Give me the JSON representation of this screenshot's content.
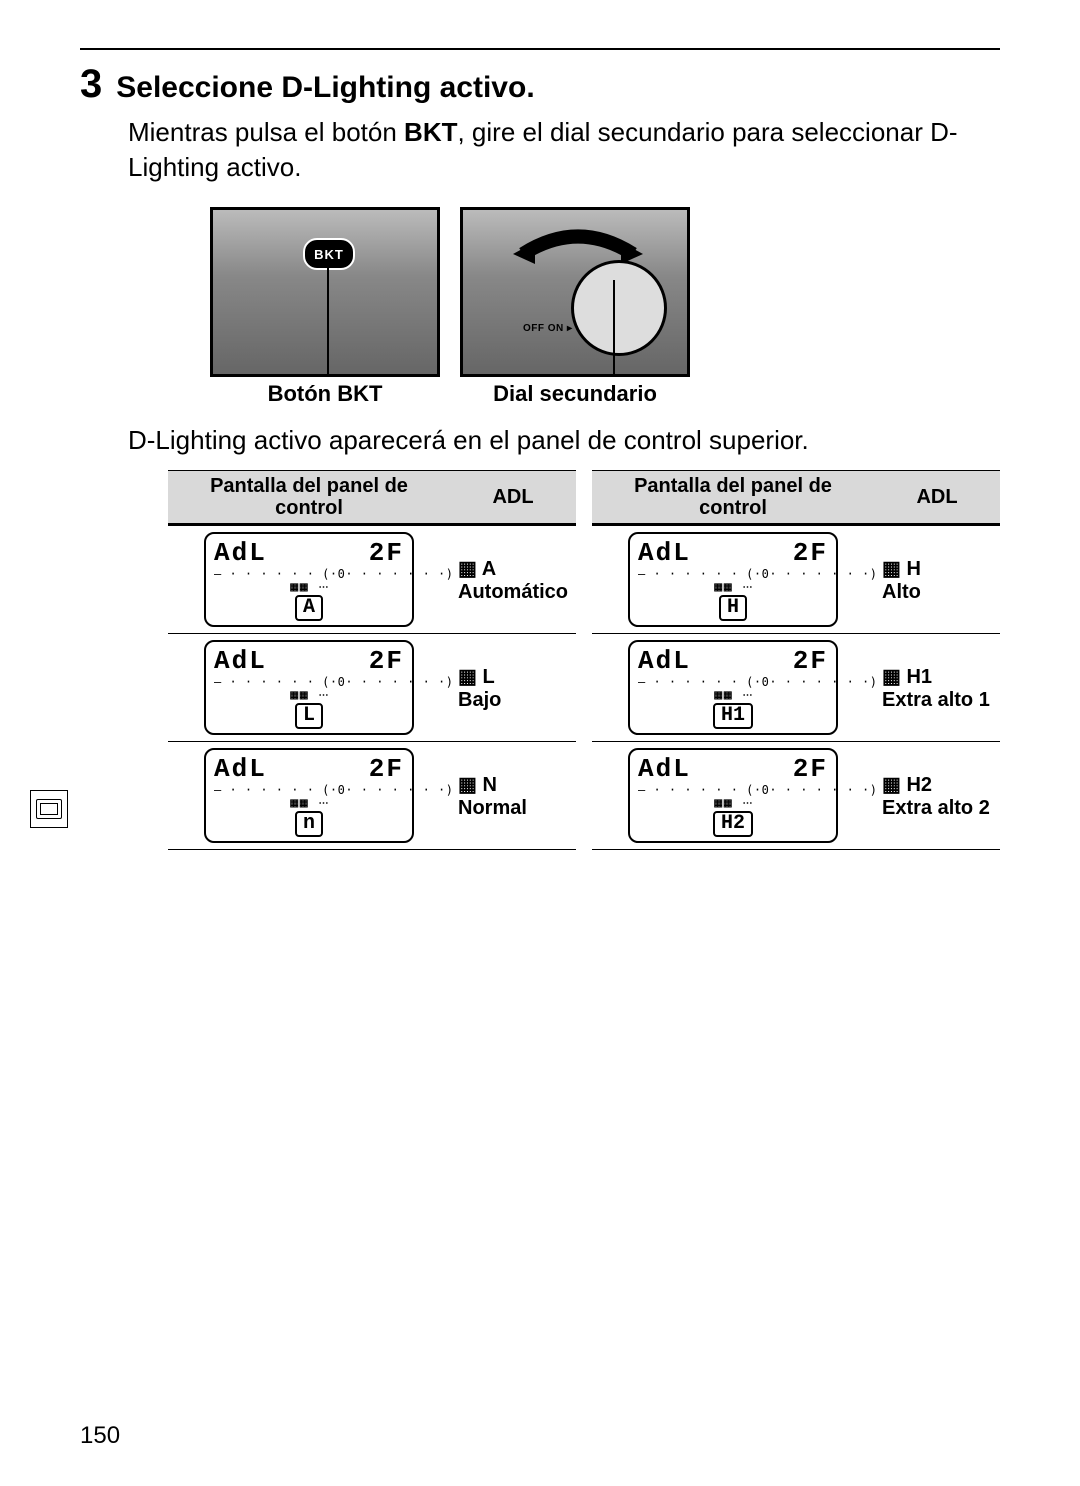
{
  "page_number": "150",
  "step": {
    "number": "3",
    "title": "Seleccione D-Lighting activo."
  },
  "body": {
    "pre": "Mientras pulsa el botón ",
    "bold": "BKT",
    "post": ", gire el dial secundario para seleccionar D-Lighting activo."
  },
  "figures": {
    "left_caption": "Botón BKT",
    "right_caption": "Dial secundario",
    "bkt_label": "BKT",
    "offon_label": "OFF  ON ▸"
  },
  "after_fig": "D-Lighting activo aparecerá en el panel de control superior.",
  "table": {
    "head_panel": "Pantalla del panel de control",
    "head_adl": "ADL",
    "lcd_top_left": "AdL",
    "lcd_top_right": "2F",
    "lcd_scale": "– · · · · · · (·0· · · · · · ·) –",
    "lcd_icons_left": "▦▦",
    "lcd_icons_right": "⋯",
    "icon_prefix": "▦"
  },
  "rows_left": [
    {
      "boxed": "A",
      "code": "A",
      "label": "Automático"
    },
    {
      "boxed": "L",
      "code": "L",
      "label": "Bajo"
    },
    {
      "boxed": "n",
      "code": "N",
      "label": "Normal"
    }
  ],
  "rows_right": [
    {
      "boxed": "H",
      "code": "H",
      "label": "Alto"
    },
    {
      "boxed": "H1",
      "code": "H1",
      "label": "Extra alto 1"
    },
    {
      "boxed": "H2",
      "code": "H2",
      "label": "Extra alto 2"
    }
  ]
}
